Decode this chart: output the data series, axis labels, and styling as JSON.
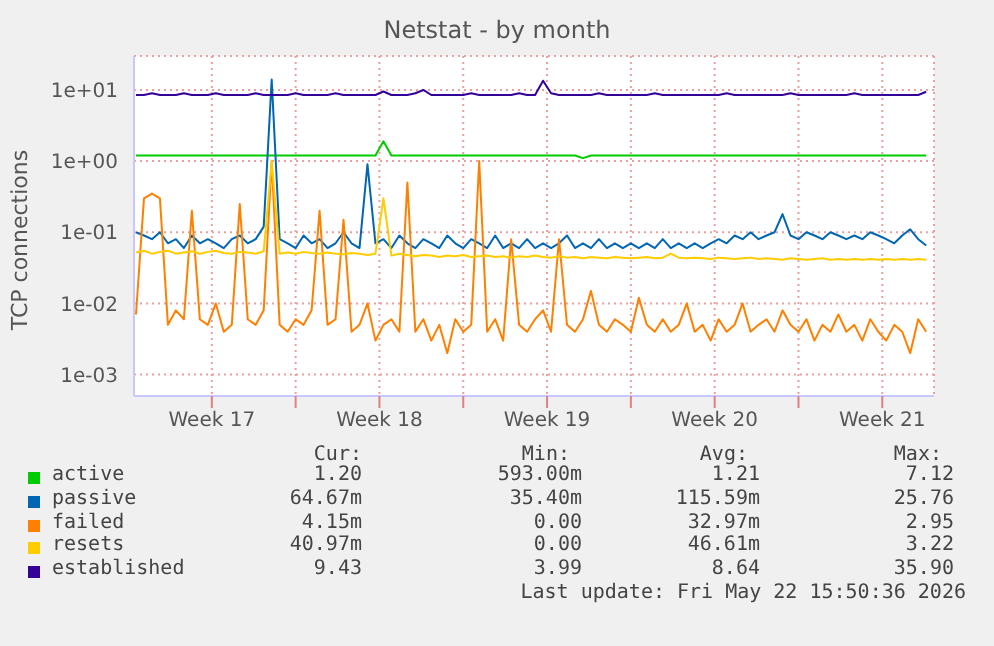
{
  "chart_data": {
    "type": "line",
    "title": "Netstat - by month",
    "ylabel": "TCP connections",
    "log": "y",
    "grid": true,
    "legend": "bottom",
    "marker": "none",
    "line_style": "solid",
    "ylim": [
      0.0005,
      30
    ],
    "yticks": [
      {
        "value": 10,
        "label": "1e+01"
      },
      {
        "value": 1,
        "label": "1e+00"
      },
      {
        "value": 0.1,
        "label": "1e-01"
      },
      {
        "value": 0.01,
        "label": "1e-02"
      },
      {
        "value": 0.001,
        "label": "1e-03"
      }
    ],
    "xlim": [
      "2026-04-19T06:00",
      "2026-05-22T15:50"
    ],
    "xticks": [
      {
        "value": "2026-04-22T12:00",
        "label": "Week 17"
      },
      {
        "value": "2026-04-26T00:00",
        "label": null
      },
      {
        "value": "2026-04-29T12:00",
        "label": "Week 18"
      },
      {
        "value": "2026-05-03T00:00",
        "label": null
      },
      {
        "value": "2026-05-06T12:00",
        "label": "Week 19"
      },
      {
        "value": "2026-05-10T00:00",
        "label": null
      },
      {
        "value": "2026-05-13T12:00",
        "label": "Week 20"
      },
      {
        "value": "2026-05-17T00:00",
        "label": null
      },
      {
        "value": "2026-05-20T12:00",
        "label": "Week 21"
      }
    ],
    "x": [
      "2026-04-19T08:00",
      "2026-04-19T16:00",
      "2026-04-20T00:00",
      "2026-04-20T08:00",
      "2026-04-20T16:00",
      "2026-04-21T00:00",
      "2026-04-21T08:00",
      "2026-04-21T16:00",
      "2026-04-22T00:00",
      "2026-04-22T08:00",
      "2026-04-22T16:00",
      "2026-04-23T00:00",
      "2026-04-23T08:00",
      "2026-04-23T16:00",
      "2026-04-24T00:00",
      "2026-04-24T08:00",
      "2026-04-24T16:00",
      "2026-04-25T00:00",
      "2026-04-25T08:00",
      "2026-04-25T16:00",
      "2026-04-26T00:00",
      "2026-04-26T08:00",
      "2026-04-26T16:00",
      "2026-04-27T00:00",
      "2026-04-27T08:00",
      "2026-04-27T16:00",
      "2026-04-28T00:00",
      "2026-04-28T08:00",
      "2026-04-28T16:00",
      "2026-04-29T00:00",
      "2026-04-29T08:00",
      "2026-04-29T16:00",
      "2026-04-30T00:00",
      "2026-04-30T08:00",
      "2026-04-30T16:00",
      "2026-05-01T00:00",
      "2026-05-01T08:00",
      "2026-05-01T16:00",
      "2026-05-02T00:00",
      "2026-05-02T08:00",
      "2026-05-02T16:00",
      "2026-05-03T00:00",
      "2026-05-03T08:00",
      "2026-05-03T16:00",
      "2026-05-04T00:00",
      "2026-05-04T08:00",
      "2026-05-04T16:00",
      "2026-05-05T00:00",
      "2026-05-05T08:00",
      "2026-05-05T16:00",
      "2026-05-06T00:00",
      "2026-05-06T08:00",
      "2026-05-06T16:00",
      "2026-05-07T00:00",
      "2026-05-07T08:00",
      "2026-05-07T16:00",
      "2026-05-08T00:00",
      "2026-05-08T08:00",
      "2026-05-08T16:00",
      "2026-05-09T00:00",
      "2026-05-09T08:00",
      "2026-05-09T16:00",
      "2026-05-10T00:00",
      "2026-05-10T08:00",
      "2026-05-10T16:00",
      "2026-05-11T00:00",
      "2026-05-11T08:00",
      "2026-05-11T16:00",
      "2026-05-12T00:00",
      "2026-05-12T08:00",
      "2026-05-12T16:00",
      "2026-05-13T00:00",
      "2026-05-13T08:00",
      "2026-05-13T16:00",
      "2026-05-14T00:00",
      "2026-05-14T08:00",
      "2026-05-14T16:00",
      "2026-05-15T00:00",
      "2026-05-15T08:00",
      "2026-05-15T16:00",
      "2026-05-16T00:00",
      "2026-05-16T08:00",
      "2026-05-16T16:00",
      "2026-05-17T00:00",
      "2026-05-17T08:00",
      "2026-05-17T16:00",
      "2026-05-18T00:00",
      "2026-05-18T08:00",
      "2026-05-18T16:00",
      "2026-05-19T00:00",
      "2026-05-19T08:00",
      "2026-05-19T16:00",
      "2026-05-20T00:00",
      "2026-05-20T08:00",
      "2026-05-20T16:00",
      "2026-05-21T00:00",
      "2026-05-21T08:00",
      "2026-05-21T16:00",
      "2026-05-22T00:00",
      "2026-05-22T08:00"
    ],
    "series": [
      {
        "name": "active",
        "color": "#00cc00",
        "values": [
          1.2,
          1.2,
          1.2,
          1.2,
          1.2,
          1.2,
          1.2,
          1.2,
          1.2,
          1.2,
          1.2,
          1.2,
          1.2,
          1.2,
          1.2,
          1.2,
          1.2,
          1.2,
          1.2,
          1.2,
          1.2,
          1.2,
          1.2,
          1.2,
          1.2,
          1.2,
          1.2,
          1.2,
          1.2,
          1.2,
          1.2,
          1.9,
          1.2,
          1.2,
          1.2,
          1.2,
          1.2,
          1.2,
          1.2,
          1.2,
          1.2,
          1.2,
          1.2,
          1.2,
          1.2,
          1.2,
          1.2,
          1.2,
          1.2,
          1.2,
          1.2,
          1.2,
          1.2,
          1.2,
          1.2,
          1.2,
          1.1,
          1.2,
          1.2,
          1.2,
          1.2,
          1.2,
          1.2,
          1.2,
          1.2,
          1.2,
          1.2,
          1.2,
          1.2,
          1.2,
          1.2,
          1.2,
          1.2,
          1.2,
          1.2,
          1.2,
          1.2,
          1.2,
          1.2,
          1.2,
          1.2,
          1.2,
          1.2,
          1.2,
          1.2,
          1.2,
          1.2,
          1.2,
          1.2,
          1.2,
          1.2,
          1.2,
          1.2,
          1.2,
          1.2,
          1.2,
          1.2,
          1.2,
          1.2,
          1.2
        ]
      },
      {
        "name": "passive",
        "color": "#0066b3",
        "values": [
          0.1,
          0.09,
          0.08,
          0.1,
          0.07,
          0.08,
          0.06,
          0.09,
          0.07,
          0.08,
          0.07,
          0.06,
          0.08,
          0.09,
          0.07,
          0.08,
          0.12,
          14,
          0.08,
          0.07,
          0.06,
          0.09,
          0.07,
          0.08,
          0.06,
          0.07,
          0.1,
          0.07,
          0.06,
          0.9,
          0.07,
          0.08,
          0.06,
          0.09,
          0.07,
          0.06,
          0.08,
          0.07,
          0.06,
          0.09,
          0.07,
          0.06,
          0.08,
          0.07,
          0.06,
          0.09,
          0.06,
          0.07,
          0.06,
          0.08,
          0.06,
          0.07,
          0.06,
          0.07,
          0.09,
          0.06,
          0.07,
          0.06,
          0.08,
          0.06,
          0.07,
          0.06,
          0.07,
          0.06,
          0.07,
          0.06,
          0.08,
          0.06,
          0.07,
          0.06,
          0.07,
          0.06,
          0.07,
          0.08,
          0.07,
          0.09,
          0.08,
          0.1,
          0.08,
          0.09,
          0.1,
          0.18,
          0.09,
          0.08,
          0.1,
          0.09,
          0.08,
          0.1,
          0.09,
          0.08,
          0.09,
          0.08,
          0.1,
          0.09,
          0.08,
          0.07,
          0.09,
          0.11,
          0.08,
          0.065
        ]
      },
      {
        "name": "failed",
        "color": "#ff8000",
        "values": [
          0.007,
          0.3,
          0.35,
          0.3,
          0.005,
          0.008,
          0.006,
          0.2,
          0.006,
          0.005,
          0.01,
          0.004,
          0.005,
          0.25,
          0.006,
          0.005,
          0.008,
          1.0,
          0.005,
          0.004,
          0.006,
          0.005,
          0.008,
          0.2,
          0.005,
          0.006,
          0.15,
          0.004,
          0.005,
          0.01,
          0.003,
          0.005,
          0.006,
          0.004,
          0.5,
          0.004,
          0.006,
          0.003,
          0.005,
          0.002,
          0.006,
          0.004,
          0.005,
          1.0,
          0.004,
          0.006,
          0.003,
          0.08,
          0.005,
          0.004,
          0.006,
          0.008,
          0.004,
          0.08,
          0.005,
          0.004,
          0.006,
          0.015,
          0.005,
          0.004,
          0.006,
          0.005,
          0.004,
          0.012,
          0.005,
          0.004,
          0.006,
          0.004,
          0.005,
          0.01,
          0.004,
          0.005,
          0.003,
          0.006,
          0.004,
          0.005,
          0.01,
          0.004,
          0.005,
          0.006,
          0.004,
          0.008,
          0.005,
          0.004,
          0.006,
          0.003,
          0.005,
          0.004,
          0.007,
          0.004,
          0.005,
          0.003,
          0.006,
          0.004,
          0.003,
          0.005,
          0.004,
          0.002,
          0.006,
          0.004
        ]
      },
      {
        "name": "resets",
        "color": "#ffcc00",
        "values": [
          0.052,
          0.055,
          0.05,
          0.053,
          0.055,
          0.05,
          0.052,
          0.054,
          0.05,
          0.053,
          0.055,
          0.051,
          0.05,
          0.053,
          0.052,
          0.05,
          0.054,
          1.0,
          0.05,
          0.052,
          0.05,
          0.053,
          0.051,
          0.05,
          0.052,
          0.05,
          0.049,
          0.051,
          0.05,
          0.048,
          0.05,
          0.3,
          0.047,
          0.05,
          0.048,
          0.046,
          0.048,
          0.047,
          0.045,
          0.047,
          0.046,
          0.048,
          0.045,
          0.046,
          0.047,
          0.045,
          0.046,
          0.044,
          0.046,
          0.045,
          0.047,
          0.045,
          0.044,
          0.046,
          0.044,
          0.045,
          0.043,
          0.045,
          0.044,
          0.043,
          0.045,
          0.044,
          0.043,
          0.044,
          0.045,
          0.043,
          0.044,
          0.05,
          0.044,
          0.043,
          0.044,
          0.043,
          0.042,
          0.044,
          0.043,
          0.042,
          0.043,
          0.044,
          0.042,
          0.043,
          0.042,
          0.041,
          0.043,
          0.042,
          0.041,
          0.042,
          0.043,
          0.041,
          0.042,
          0.041,
          0.042,
          0.041,
          0.042,
          0.041,
          0.042,
          0.041,
          0.042,
          0.041,
          0.042,
          0.041
        ]
      },
      {
        "name": "established",
        "color": "#330099",
        "values": [
          8.5,
          8.5,
          9,
          8.5,
          8.5,
          8.5,
          9,
          8.5,
          8.5,
          8.5,
          9,
          8.5,
          8.5,
          8.5,
          8.5,
          9,
          8.5,
          8.5,
          8.5,
          8.5,
          9,
          8.5,
          8.5,
          8.5,
          8.5,
          9,
          8.5,
          8.5,
          8.5,
          8.5,
          8.5,
          9.5,
          8.5,
          8.5,
          8.5,
          9,
          10,
          8.5,
          8.5,
          8.5,
          8.5,
          8.5,
          9,
          8.5,
          8.5,
          8.5,
          8.5,
          8.5,
          9,
          8.5,
          8.5,
          13.5,
          9,
          8.5,
          8.5,
          8.5,
          8.5,
          8.5,
          9,
          8.5,
          8.5,
          8.5,
          8.5,
          8.5,
          8.5,
          9,
          8.5,
          8.5,
          8.5,
          8.5,
          8.5,
          8.5,
          8.5,
          8.5,
          9,
          8.5,
          8.5,
          8.5,
          8.5,
          8.5,
          8.5,
          8.5,
          9,
          8.5,
          8.5,
          8.5,
          8.5,
          8.5,
          8.5,
          8.5,
          9,
          8.5,
          8.5,
          8.5,
          8.5,
          8.5,
          8.5,
          8.5,
          8.5,
          9.43
        ]
      }
    ],
    "annotations": [
      "Cur:",
      "Min:",
      "Avg:",
      "Max:",
      "1.20",
      "593.00m",
      "1.21",
      "7.12",
      "64.67m",
      "35.40m",
      "115.59m",
      "25.76",
      "4.15m",
      "0.00",
      "32.97m",
      "2.95",
      "40.97m",
      "0.00",
      "46.61m",
      "3.22",
      "9.43",
      "3.99",
      "8.64",
      "35.90",
      "Last update: Fri May 22 15:50:36 2026"
    ]
  }
}
